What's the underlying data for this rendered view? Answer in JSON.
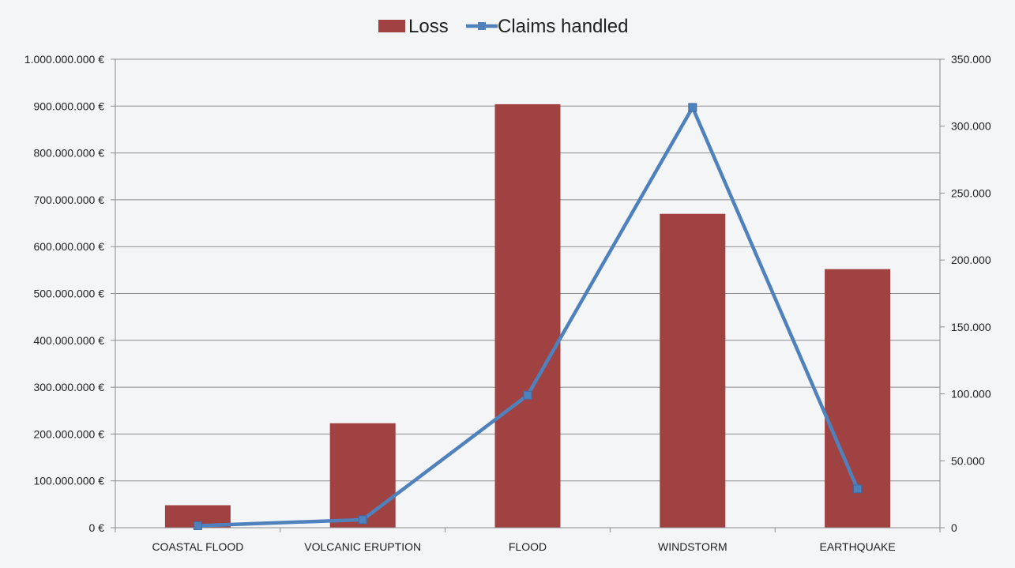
{
  "chart_data": {
    "type": "bar",
    "categories": [
      "COASTAL FLOOD",
      "VOLCANIC ERUPTION",
      "FLOOD",
      "WINDSTORM",
      "EARTHQUAKE"
    ],
    "series": [
      {
        "name": "Loss",
        "type": "bar",
        "axis": "left",
        "color": "#a04242",
        "values": [
          48000000,
          223000000,
          904000000,
          670000000,
          552000000
        ]
      },
      {
        "name": "Claims handled",
        "type": "line",
        "axis": "right",
        "color": "#4f81bd",
        "values": [
          1500,
          6000,
          99000,
          314000,
          29000
        ]
      }
    ],
    "y_left": {
      "ylim": [
        0,
        1000000000
      ],
      "ticks": [
        {
          "value": 0,
          "label": "0 €"
        },
        {
          "value": 100000000,
          "label": "100.000.000 €"
        },
        {
          "value": 200000000,
          "label": "200.000.000 €"
        },
        {
          "value": 300000000,
          "label": "300.000.000 €"
        },
        {
          "value": 400000000,
          "label": "400.000.000 €"
        },
        {
          "value": 500000000,
          "label": "500.000.000 €"
        },
        {
          "value": 600000000,
          "label": "600.000.000 €"
        },
        {
          "value": 700000000,
          "label": "700.000.000 €"
        },
        {
          "value": 800000000,
          "label": "800.000.000 €"
        },
        {
          "value": 900000000,
          "label": "900.000.000 €"
        },
        {
          "value": 1000000000,
          "label": "1.000.000.000 €"
        }
      ]
    },
    "y_right": {
      "ylim": [
        0,
        350000
      ],
      "ticks": [
        {
          "value": 0,
          "label": "0"
        },
        {
          "value": 50000,
          "label": "50.000"
        },
        {
          "value": 100000,
          "label": "100.000"
        },
        {
          "value": 150000,
          "label": "150.000"
        },
        {
          "value": 200000,
          "label": "200.000"
        },
        {
          "value": 250000,
          "label": "250.000"
        },
        {
          "value": 300000,
          "label": "300.000"
        },
        {
          "value": 350000,
          "label": "350.000"
        }
      ]
    },
    "grid": true,
    "legend": "top-center"
  }
}
